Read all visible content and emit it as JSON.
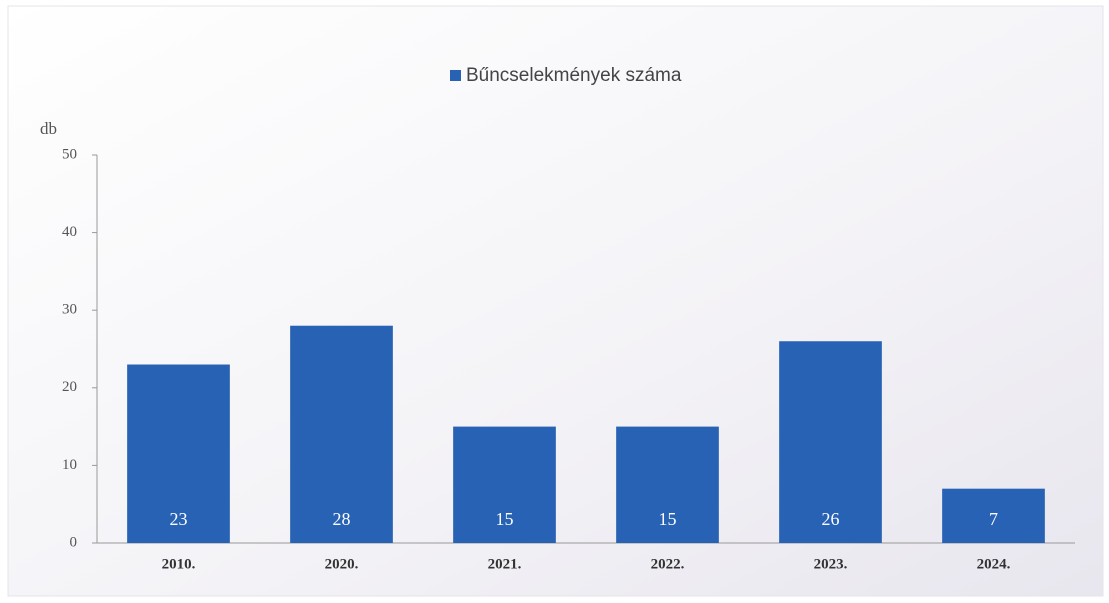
{
  "chart_data": {
    "type": "bar",
    "y_label": "db",
    "categories": [
      "2010.",
      "2020.",
      "2021.",
      "2022.",
      "2023.",
      "2024."
    ],
    "series": [
      {
        "name": "Bűncselekmények száma",
        "color": "#2862b4",
        "values": [
          23,
          28,
          15,
          15,
          26,
          7
        ]
      }
    ],
    "ylim": [
      0,
      50
    ],
    "yticks": [
      0,
      10,
      20,
      30,
      40,
      50
    ],
    "grid": false,
    "legend": "top"
  }
}
